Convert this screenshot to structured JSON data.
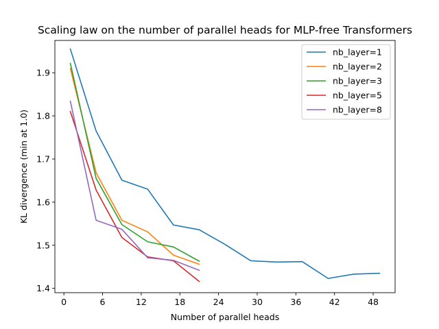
{
  "chart_data": {
    "type": "line",
    "title": "Scaling law on the number of parallel heads for MLP-free Transformers",
    "xlabel": "Number of parallel heads",
    "ylabel": "KL divergence (min at 1.0)",
    "xlim": [
      -1.4,
      51.4
    ],
    "ylim": [
      1.39,
      1.975
    ],
    "xticks": [
      0,
      6,
      12,
      18,
      24,
      30,
      36,
      42,
      48
    ],
    "yticks": [
      1.4,
      1.5,
      1.6,
      1.7,
      1.8,
      1.9
    ],
    "ytick_labels": [
      "1.4",
      "1.5",
      "1.6",
      "1.7",
      "1.8",
      "1.9"
    ],
    "grid": false,
    "legend_position": "top-right",
    "series": [
      {
        "name": "nb_layer=1",
        "color": "#1f77b4",
        "x": [
          1,
          5,
          9,
          13,
          17,
          21,
          25,
          29,
          33,
          37,
          41,
          45,
          49
        ],
        "y": [
          1.955,
          1.765,
          1.651,
          1.63,
          1.547,
          1.536,
          1.502,
          1.464,
          1.461,
          1.462,
          1.423,
          1.433,
          1.435
        ]
      },
      {
        "name": "nb_layer=2",
        "color": "#ff7f0e",
        "x": [
          1,
          5,
          9,
          13,
          17,
          21
        ],
        "y": [
          1.91,
          1.668,
          1.558,
          1.531,
          1.477,
          1.456
        ]
      },
      {
        "name": "nb_layer=3",
        "color": "#2ca02c",
        "x": [
          1,
          5,
          9,
          13,
          17,
          21
        ],
        "y": [
          1.922,
          1.655,
          1.548,
          1.508,
          1.496,
          1.463
        ]
      },
      {
        "name": "nb_layer=5",
        "color": "#d62728",
        "x": [
          1,
          5,
          9,
          13,
          17,
          21
        ],
        "y": [
          1.81,
          1.628,
          1.518,
          1.473,
          1.464,
          1.416
        ]
      },
      {
        "name": "nb_layer=8",
        "color": "#9467bd",
        "x": [
          1,
          5,
          9,
          13,
          17,
          21
        ],
        "y": [
          1.834,
          1.558,
          1.537,
          1.471,
          1.465,
          1.442
        ]
      }
    ]
  }
}
